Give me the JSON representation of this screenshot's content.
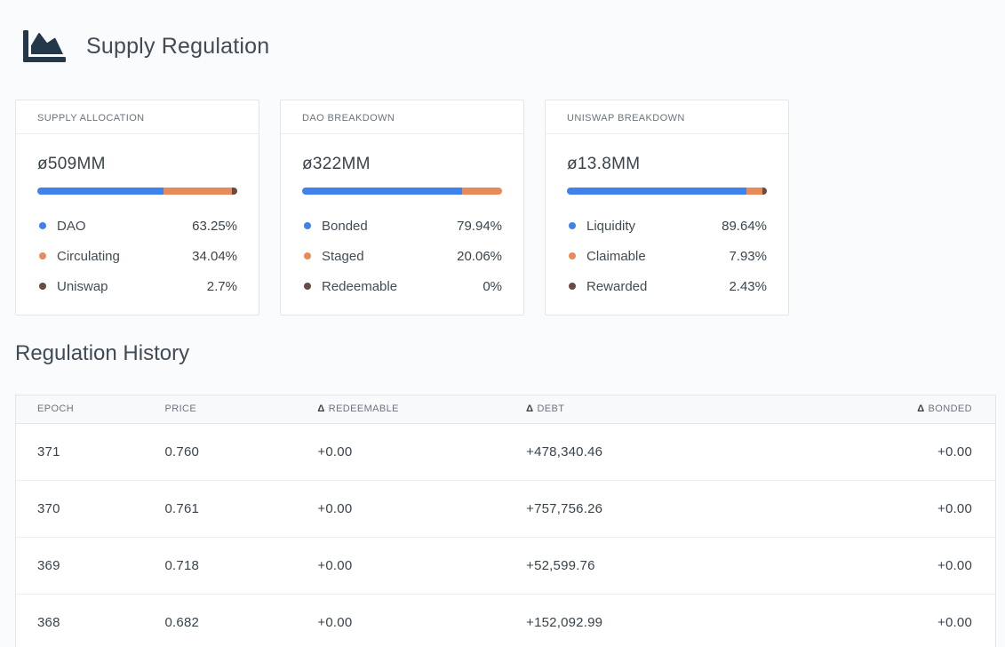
{
  "page": {
    "title": "Supply Regulation",
    "section_title": "Regulation History"
  },
  "colors": {
    "blue": "#4181EC",
    "orange": "#E98A5A",
    "brown": "#6A4A41"
  },
  "cards": [
    {
      "label": "SUPPLY ALLOCATION",
      "value": "ø509MM",
      "segments": [
        {
          "name": "DAO",
          "pct": 63.25,
          "pct_label": "63.25%"
        },
        {
          "name": "Circulating",
          "pct": 34.04,
          "pct_label": "34.04%"
        },
        {
          "name": "Uniswap",
          "pct": 2.71,
          "pct_label": "2.7%"
        }
      ]
    },
    {
      "label": "DAO BREAKDOWN",
      "value": "ø322MM",
      "segments": [
        {
          "name": "Bonded",
          "pct": 79.94,
          "pct_label": "79.94%"
        },
        {
          "name": "Staged",
          "pct": 20.06,
          "pct_label": "20.06%"
        },
        {
          "name": "Redeemable",
          "pct": 0,
          "pct_label": "0%"
        }
      ]
    },
    {
      "label": "UNISWAP BREAKDOWN",
      "value": "ø13.8MM",
      "segments": [
        {
          "name": "Liquidity",
          "pct": 89.64,
          "pct_label": "89.64%"
        },
        {
          "name": "Claimable",
          "pct": 7.93,
          "pct_label": "7.93%"
        },
        {
          "name": "Rewarded",
          "pct": 2.43,
          "pct_label": "2.43%"
        }
      ]
    }
  ],
  "history_table": {
    "delta_symbol": "Δ",
    "columns": [
      "EPOCH",
      "PRICE",
      "REDEEMABLE",
      "DEBT",
      "BONDED"
    ],
    "rows": [
      {
        "epoch": "371",
        "price": "0.760",
        "redeemable": "+0.00",
        "debt": "+478,340.46",
        "bonded": "+0.00"
      },
      {
        "epoch": "370",
        "price": "0.761",
        "redeemable": "+0.00",
        "debt": "+757,756.26",
        "bonded": "+0.00"
      },
      {
        "epoch": "369",
        "price": "0.718",
        "redeemable": "+0.00",
        "debt": "+52,599.76",
        "bonded": "+0.00"
      },
      {
        "epoch": "368",
        "price": "0.682",
        "redeemable": "+0.00",
        "debt": "+152,092.99",
        "bonded": "+0.00"
      }
    ]
  }
}
